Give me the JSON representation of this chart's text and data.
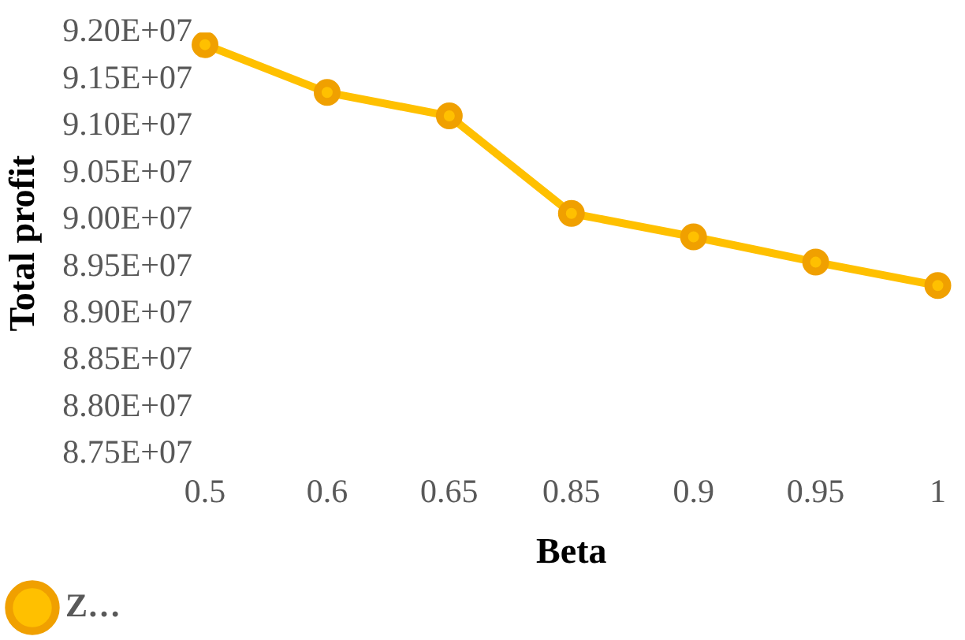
{
  "chart_data": {
    "type": "line",
    "xlabel": "Beta",
    "ylabel": "Total profit",
    "categories": [
      "0.5",
      "0.6",
      "0.65",
      "0.85",
      "0.9",
      "0.95",
      "1"
    ],
    "series": [
      {
        "name": "Z…",
        "color": "#ffc000",
        "values": [
          91870000,
          91360000,
          91110000,
          90070000,
          89820000,
          89550000,
          89300000
        ]
      }
    ],
    "ylim": [
      87500000,
      92000000
    ],
    "yticks": [
      {
        "value": 87500000,
        "label": "8.75E+07"
      },
      {
        "value": 88000000,
        "label": "8.80E+07"
      },
      {
        "value": 88500000,
        "label": "8.85E+07"
      },
      {
        "value": 89000000,
        "label": "8.90E+07"
      },
      {
        "value": 89500000,
        "label": "8.95E+07"
      },
      {
        "value": 90000000,
        "label": "9.00E+07"
      },
      {
        "value": 90500000,
        "label": "9.05E+07"
      },
      {
        "value": 91000000,
        "label": "9.10E+07"
      },
      {
        "value": 91500000,
        "label": "9.15E+07"
      },
      {
        "value": 92000000,
        "label": "9.20E+07"
      }
    ],
    "grid": false,
    "legend": "bottom left",
    "marker": "circle",
    "line_style": "solid"
  }
}
